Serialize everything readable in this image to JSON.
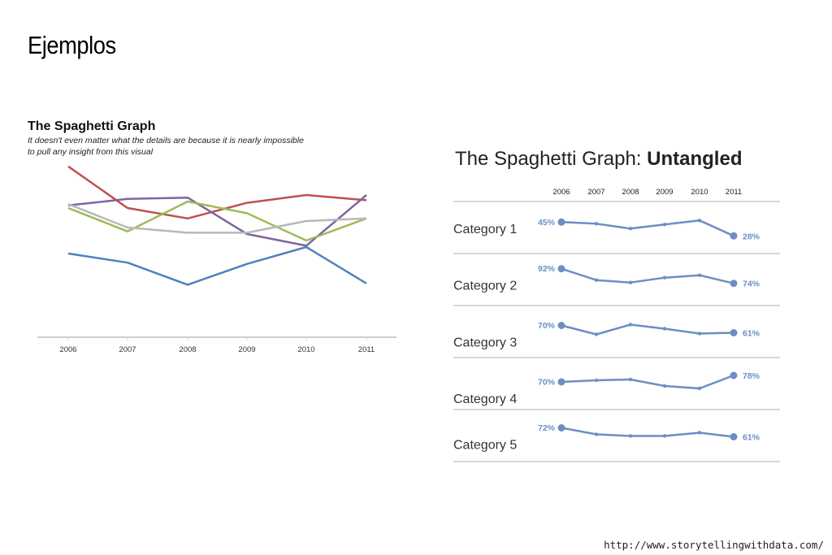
{
  "slide": {
    "title": "Ejemplos",
    "source": "http://www.storytellingwithdata.com/"
  },
  "chart_data": [
    {
      "type": "line",
      "title": "The Spaghetti Graph",
      "subtitle_line1": "It doesn't even matter what the details are because it is nearly impossible",
      "subtitle_line2": "to pull any insight from this visual",
      "categories": [
        "2006",
        "2007",
        "2008",
        "2009",
        "2010",
        "2011"
      ],
      "grid": false,
      "legend": "none",
      "series": [
        {
          "color": "#c0504d",
          "values": [
            92,
            60,
            52,
            64,
            70,
            66
          ]
        },
        {
          "color": "#8064a2",
          "values": [
            62,
            67,
            68,
            40,
            31,
            70
          ]
        },
        {
          "color": "#9bbb59",
          "values": [
            60,
            42,
            65,
            56,
            35,
            52
          ]
        },
        {
          "color": "#b8b8b8",
          "values": [
            63,
            45,
            41,
            41,
            50,
            52
          ]
        },
        {
          "color": "#4f81bd",
          "values": [
            25,
            18,
            1,
            17,
            30,
            2
          ]
        }
      ]
    },
    {
      "type": "line",
      "title_prefix": "The Spaghetti Graph: ",
      "title_emphasis": "Untangled",
      "categories": [
        "2006",
        "2007",
        "2008",
        "2009",
        "2010",
        "2011"
      ],
      "line_color": "#6b8fc4",
      "grid": false,
      "legend": "none",
      "panels": [
        {
          "label": "Category 1",
          "start_label": "45%",
          "end_label": "28%",
          "values": [
            45,
            43,
            37,
            42,
            47,
            28
          ]
        },
        {
          "label": "Category 2",
          "start_label": "92%",
          "end_label": "74%",
          "values": [
            92,
            78,
            75,
            81,
            84,
            74
          ]
        },
        {
          "label": "Category 3",
          "start_label": "70%",
          "end_label": "61%",
          "values": [
            70,
            59,
            71,
            66,
            60,
            61
          ]
        },
        {
          "label": "Category 4",
          "start_label": "70%",
          "end_label": "78%",
          "values": [
            70,
            72,
            73,
            65,
            62,
            78
          ]
        },
        {
          "label": "Category 5",
          "start_label": "72%",
          "end_label": "61%",
          "values": [
            72,
            64,
            62,
            62,
            66,
            61
          ]
        }
      ]
    }
  ]
}
